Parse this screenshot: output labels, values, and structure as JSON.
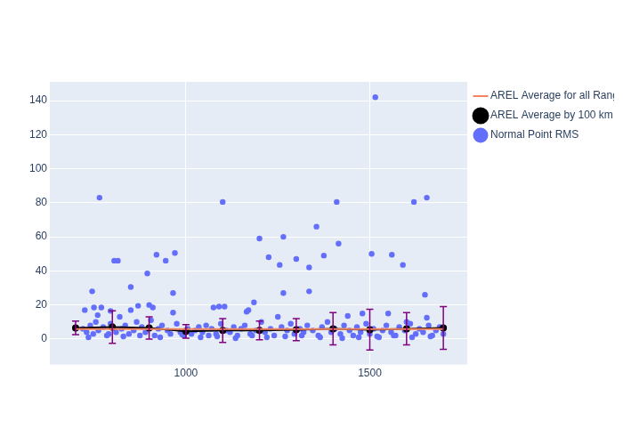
{
  "chart_data": {
    "type": "scatter",
    "xlim": [
      630,
      1765
    ],
    "xticks": [
      1000,
      1500
    ],
    "ylim": [
      -15,
      151
    ],
    "yticks": [
      0,
      20,
      40,
      60,
      80,
      100,
      120,
      140
    ],
    "grid": true,
    "legend": "top right",
    "series": [
      {
        "name": "Normal Point RMS",
        "type": "scatter",
        "marker": "circle",
        "color": "#636efa",
        "x": [
          765,
          1100,
          1410,
          1515,
          1620,
          1655,
          805,
          815,
          945,
          920,
          970,
          895,
          850,
          745,
          965,
          1200,
          1265,
          1225,
          1255,
          1300,
          1355,
          1375,
          1415,
          1505,
          1560,
          1590,
          1335,
          1335,
          1265,
          1650,
          1170,
          1165,
          1185,
          1075,
          1090,
          1105,
          725,
          750,
          770,
          760,
          795,
          820,
          850,
          870,
          900,
          910,
          965,
          1250,
          1440,
          1480,
          1550,
          1600,
          1655,
          720,
          730,
          740,
          748,
          755,
          762,
          775,
          785,
          795,
          810,
          825,
          835,
          845,
          858,
          866,
          880,
          890,
          905,
          915,
          925,
          935,
          950,
          958,
          975,
          985,
          995,
          1005,
          1015,
          1025,
          1035,
          1045,
          1055,
          1062,
          1070,
          1082,
          1095,
          1110,
          1120,
          1130,
          1140,
          1150,
          1160,
          1175,
          1190,
          1205,
          1215,
          1230,
          1240,
          1260,
          1275,
          1285,
          1295,
          1310,
          1320,
          1330,
          1345,
          1360,
          1370,
          1385,
          1395,
          1405,
          1420,
          1430,
          1445,
          1455,
          1465,
          1475,
          1490,
          1500,
          1510,
          1525,
          1535,
          1545,
          1558,
          1570,
          1580,
          1595,
          1610,
          1625,
          1635,
          1645,
          1660,
          1670,
          1680,
          1690,
          1700,
          735,
          790,
          830,
          875,
          930,
          990,
          1040,
          1085,
          1135,
          1180,
          1220,
          1270,
          1315,
          1365,
          1425,
          1470,
          1520,
          1565,
          1615,
          1665
        ],
        "values": [
          83,
          80.5,
          80.5,
          142,
          80.5,
          83,
          46,
          46,
          46,
          49.5,
          50.5,
          38.5,
          30.5,
          28,
          27,
          59,
          60,
          48,
          43.5,
          47,
          66,
          49,
          56,
          50,
          49.5,
          43.5,
          42,
          28,
          27,
          26,
          17,
          16,
          21.5,
          18.5,
          19,
          19,
          17,
          18.5,
          18.5,
          14,
          16.5,
          13,
          17,
          19.5,
          20,
          18.5,
          15.5,
          13,
          13.5,
          15,
          15,
          10,
          12.5,
          6,
          4,
          8,
          3,
          10,
          5,
          7,
          2,
          9,
          4,
          6,
          8,
          3,
          5,
          10,
          7,
          4,
          11,
          2,
          6,
          8,
          5,
          3,
          9,
          4,
          2,
          6,
          3,
          5,
          7,
          4,
          8,
          2,
          6,
          3,
          9,
          5,
          4,
          7,
          2,
          6,
          8,
          3,
          5,
          10,
          4,
          6,
          2,
          7,
          5,
          9,
          3,
          6,
          4,
          8,
          5,
          2,
          7,
          10,
          4,
          6,
          3,
          8,
          5,
          2,
          7,
          4,
          9,
          3,
          6,
          1,
          5,
          8,
          4,
          2,
          7,
          5,
          9,
          3,
          6,
          4,
          8,
          2,
          5,
          7,
          3,
          1,
          3,
          1.5,
          2,
          1,
          2.5,
          1,
          1.5,
          0.5,
          2,
          1,
          1.5,
          2,
          1,
          0.5,
          1,
          1.5,
          2,
          1,
          1.5
        ]
      },
      {
        "name": "AREL Average by 100 km with STD",
        "type": "line",
        "marker": "circle",
        "color": "#000000",
        "x": [
          700,
          800,
          900,
          1000,
          1100,
          1200,
          1300,
          1400,
          1500,
          1600,
          1700
        ],
        "values": [
          6.5,
          7,
          6.5,
          4.5,
          5,
          5,
          5.5,
          6,
          5.5,
          6,
          6.5
        ],
        "error": [
          4,
          9.5,
          6.5,
          4,
          7,
          5.5,
          6.5,
          9.5,
          12,
          9.5,
          12.5
        ]
      },
      {
        "name": "AREL Average for all Ranges",
        "type": "line",
        "line_style": "solid",
        "color": "#f4845f",
        "x": [
          700,
          1700
        ],
        "values": [
          5.8,
          5.8
        ]
      }
    ]
  }
}
